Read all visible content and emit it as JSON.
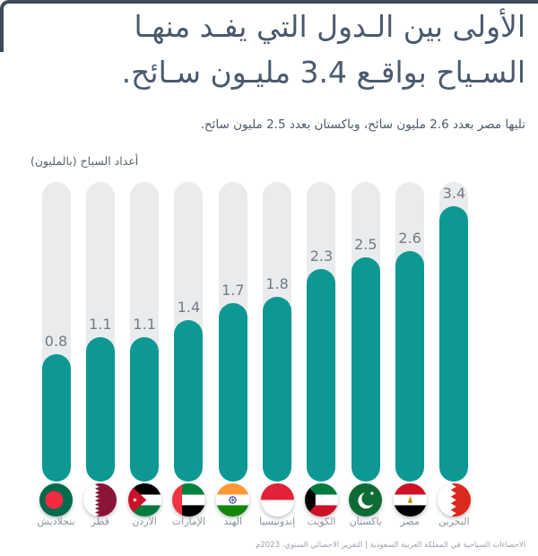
{
  "header": {
    "title_line1": "الأولى بين الـدول التي يفـد منهـا",
    "title_line2": "السـياح بواقـع 3.4 مليـون سـائح.",
    "subtitle": "تليها مصر بعدد 2.6 مليون سائح، وباكستان بعدد 2.5 مليون سائح."
  },
  "chart_data": {
    "type": "bar",
    "title": "الأولى بين الدول التي يفد منها السياح بواقع 3.4 مليون سائح.",
    "ylabel": "أعداد السياح (بالمليون)",
    "xlabel": "",
    "ylim": [
      0,
      3.5
    ],
    "grid": false,
    "legend": "none",
    "categories": [
      "بنجلاديش",
      "قطر",
      "الأردن",
      "الإمارات",
      "الهند",
      "إندونيسيا",
      "الكويت",
      "باكستان",
      "مصر",
      "البحرين"
    ],
    "values": [
      0.8,
      1.1,
      1.1,
      1.4,
      1.7,
      1.8,
      2.3,
      2.5,
      2.6,
      3.4
    ],
    "value_labels": [
      "0.8",
      "1.1",
      "1.1",
      "1.4",
      "1.7",
      "1.8",
      "2.3",
      "2.5",
      "2.6",
      "3.4"
    ],
    "flags": [
      "bangladesh",
      "qatar",
      "jordan",
      "uae",
      "india",
      "indonesia",
      "kuwait",
      "pakistan",
      "egypt",
      "bahrain"
    ],
    "bar_color": "#0d9894",
    "track_color": "#eaebec",
    "value_label_color": "#6f7b88",
    "category_label_color": "#8b94a0"
  },
  "footer": {
    "source": "الاحصاءات السياحية في المملكة العربية السعودية  |  التقرير الاحصائي السنوي، 2023م"
  }
}
